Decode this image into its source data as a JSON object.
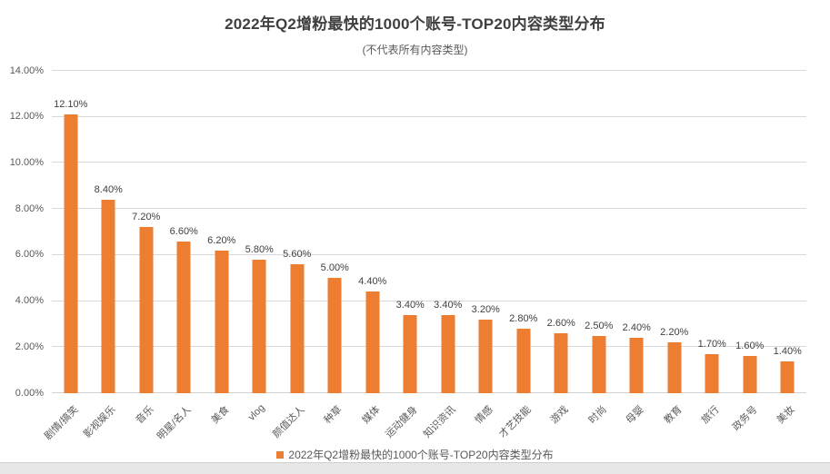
{
  "chart": {
    "title": "2022年Q2增粉最快的1000个账号-TOP20内容类型分布",
    "subtitle": "(不代表所有内容类型)",
    "legend": {
      "label": "2022年Q2增粉最快的1000个账号-TOP20内容类型分布",
      "swatch_color": "#ED7D31"
    }
  },
  "chart_data": {
    "type": "bar",
    "title": "2022年Q2增粉最快的1000个账号-TOP20内容类型分布",
    "subtitle": "(不代表所有内容类型)",
    "categories": [
      "剧情/搞笑",
      "影视娱乐",
      "音乐",
      "明星/名人",
      "美食",
      "vlog",
      "颜值达人",
      "种草",
      "媒体",
      "运动健身",
      "知识资讯",
      "情感",
      "才艺技能",
      "游戏",
      "时尚",
      "母婴",
      "教育",
      "旅行",
      "政务号",
      "美妆"
    ],
    "values": [
      12.1,
      8.4,
      7.2,
      6.6,
      6.2,
      5.8,
      5.6,
      5.0,
      4.4,
      3.4,
      3.4,
      3.2,
      2.8,
      2.6,
      2.5,
      2.4,
      2.2,
      1.7,
      1.6,
      1.4
    ],
    "value_labels": [
      "12.10%",
      "8.40%",
      "7.20%",
      "6.60%",
      "6.20%",
      "5.80%",
      "5.60%",
      "5.00%",
      "4.40%",
      "3.40%",
      "3.40%",
      "3.20%",
      "2.80%",
      "2.60%",
      "2.50%",
      "2.40%",
      "2.20%",
      "1.70%",
      "1.60%",
      "1.40%"
    ],
    "y_ticks": [
      "0.00%",
      "2.00%",
      "4.00%",
      "6.00%",
      "8.00%",
      "10.00%",
      "12.00%",
      "14.00%"
    ],
    "ylim": [
      0,
      14
    ],
    "y_tick_step": 2,
    "grid": true,
    "bar_color": "#ED7D31",
    "legend_position": "bottom",
    "legend_entries": [
      "2022年Q2增粉最快的1000个账号-TOP20内容类型分布"
    ]
  }
}
